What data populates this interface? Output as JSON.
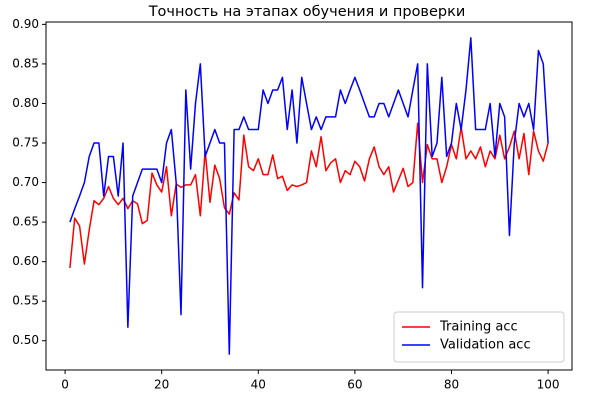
{
  "chart_data": {
    "type": "line",
    "title": "Точность на этапах обучения и проверки",
    "x": [
      1,
      2,
      3,
      4,
      5,
      6,
      7,
      8,
      9,
      10,
      11,
      12,
      13,
      14,
      15,
      16,
      17,
      18,
      19,
      20,
      21,
      22,
      23,
      24,
      25,
      26,
      27,
      28,
      29,
      30,
      31,
      32,
      33,
      34,
      35,
      36,
      37,
      38,
      39,
      40,
      41,
      42,
      43,
      44,
      45,
      46,
      47,
      48,
      49,
      50,
      51,
      52,
      53,
      54,
      55,
      56,
      57,
      58,
      59,
      60,
      61,
      62,
      63,
      64,
      65,
      66,
      67,
      68,
      69,
      70,
      71,
      72,
      73,
      74,
      75,
      76,
      77,
      78,
      79,
      80,
      81,
      82,
      83,
      84,
      85,
      86,
      87,
      88,
      89,
      90,
      91,
      92,
      93,
      94,
      95,
      96,
      97,
      98,
      99,
      100
    ],
    "series": [
      {
        "name": "Training acc",
        "color": "#ff0000",
        "values": [
          0.592,
          0.655,
          0.645,
          0.597,
          0.64,
          0.677,
          0.672,
          0.68,
          0.695,
          0.68,
          0.672,
          0.68,
          0.667,
          0.677,
          0.673,
          0.648,
          0.652,
          0.712,
          0.697,
          0.688,
          0.72,
          0.658,
          0.698,
          0.694,
          0.697,
          0.697,
          0.71,
          0.658,
          0.74,
          0.675,
          0.722,
          0.705,
          0.668,
          0.66,
          0.687,
          0.678,
          0.76,
          0.72,
          0.715,
          0.73,
          0.71,
          0.71,
          0.735,
          0.705,
          0.708,
          0.69,
          0.697,
          0.695,
          0.697,
          0.7,
          0.74,
          0.72,
          0.758,
          0.715,
          0.725,
          0.73,
          0.7,
          0.715,
          0.71,
          0.727,
          0.72,
          0.702,
          0.73,
          0.745,
          0.72,
          0.71,
          0.72,
          0.688,
          0.703,
          0.718,
          0.695,
          0.7,
          0.775,
          0.7,
          0.748,
          0.73,
          0.73,
          0.7,
          0.72,
          0.748,
          0.73,
          0.77,
          0.73,
          0.74,
          0.73,
          0.745,
          0.72,
          0.74,
          0.73,
          0.76,
          0.73,
          0.745,
          0.765,
          0.73,
          0.762,
          0.71,
          0.765,
          0.74,
          0.727,
          0.75
        ]
      },
      {
        "name": "Validation acc",
        "color": "#0000ff",
        "values": [
          0.65,
          0.667,
          0.683,
          0.7,
          0.733,
          0.75,
          0.75,
          0.683,
          0.733,
          0.733,
          0.683,
          0.75,
          0.517,
          0.683,
          0.7,
          0.717,
          0.717,
          0.717,
          0.717,
          0.7,
          0.75,
          0.767,
          0.7,
          0.533,
          0.817,
          0.717,
          0.8,
          0.85,
          0.733,
          0.75,
          0.767,
          0.75,
          0.75,
          0.483,
          0.767,
          0.767,
          0.783,
          0.767,
          0.767,
          0.767,
          0.817,
          0.8,
          0.817,
          0.817,
          0.833,
          0.767,
          0.817,
          0.75,
          0.833,
          0.8,
          0.767,
          0.783,
          0.767,
          0.783,
          0.783,
          0.783,
          0.817,
          0.8,
          0.817,
          0.833,
          0.817,
          0.8,
          0.783,
          0.783,
          0.8,
          0.8,
          0.783,
          0.8,
          0.817,
          0.8,
          0.783,
          0.817,
          0.85,
          0.567,
          0.85,
          0.733,
          0.75,
          0.833,
          0.733,
          0.75,
          0.8,
          0.767,
          0.817,
          0.883,
          0.767,
          0.767,
          0.767,
          0.8,
          0.733,
          0.8,
          0.783,
          0.633,
          0.75,
          0.8,
          0.783,
          0.8,
          0.767,
          0.867,
          0.85,
          0.75
        ]
      }
    ],
    "xlim": [
      -3.95,
      104.95
    ],
    "ylim": [
      0.463,
      0.903
    ],
    "xticks": [
      0,
      20,
      40,
      60,
      80,
      100
    ],
    "yticks": [
      {
        "value": 0.5,
        "label": "0.50"
      },
      {
        "value": 0.55,
        "label": "0.55"
      },
      {
        "value": 0.6,
        "label": "0.60"
      },
      {
        "value": 0.65,
        "label": "0.65"
      },
      {
        "value": 0.7,
        "label": "0.70"
      },
      {
        "value": 0.75,
        "label": "0.75"
      },
      {
        "value": 0.8,
        "label": "0.80"
      },
      {
        "value": 0.85,
        "label": "0.85"
      },
      {
        "value": 0.9,
        "label": "0.90"
      }
    ],
    "legend": "lower right"
  }
}
